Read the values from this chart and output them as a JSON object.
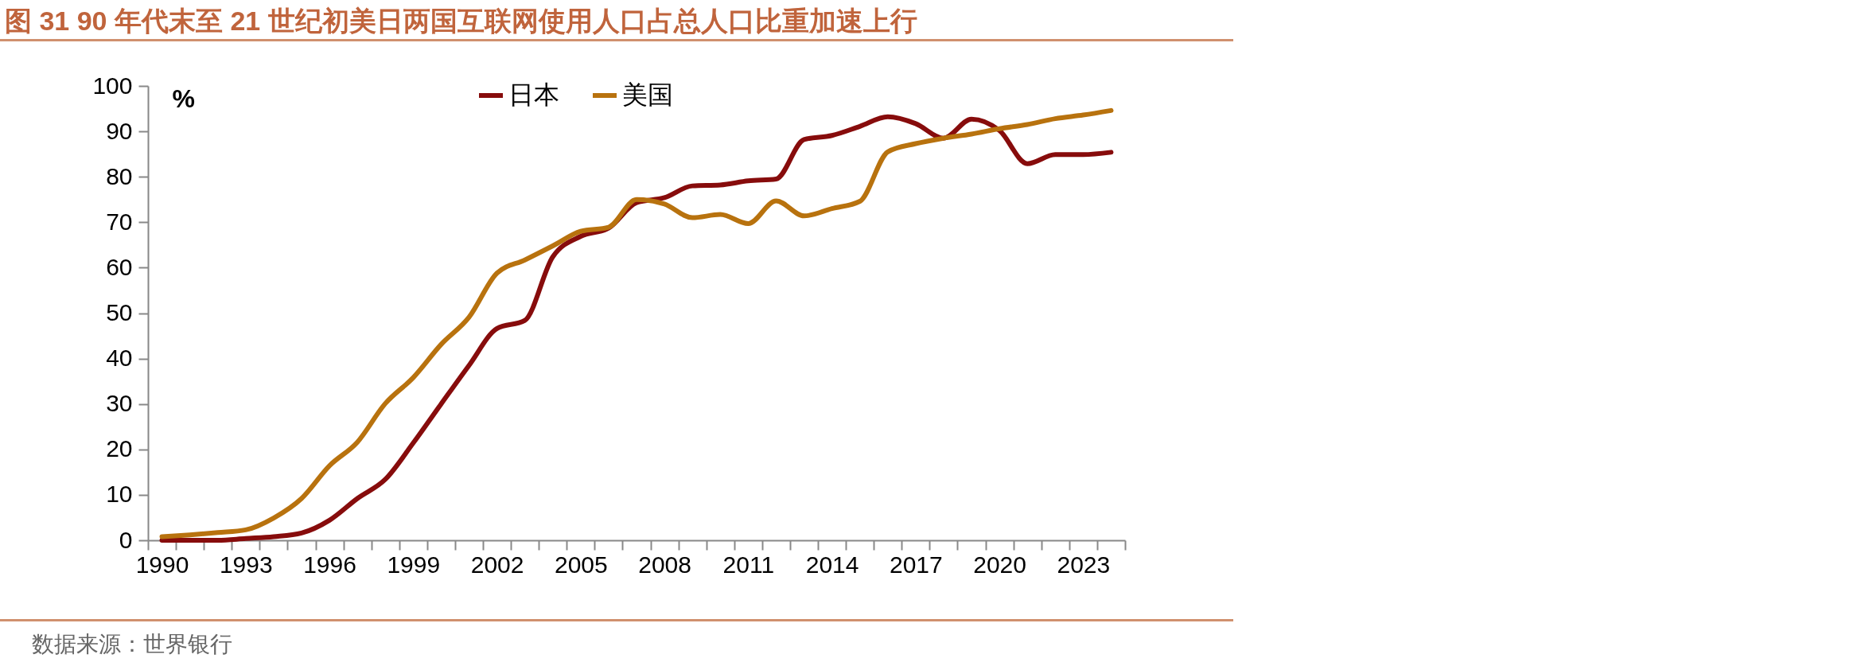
{
  "chart_data": {
    "type": "line",
    "title": "图 31 90 年代末至 21 世纪初美日两国互联网使用人口占总人口比重加速上行",
    "ylabel": "%",
    "categories": [
      "1990",
      null,
      null,
      "1993",
      null,
      null,
      "1996",
      null,
      null,
      "1999",
      null,
      null,
      "2002",
      null,
      null,
      "2005",
      null,
      null,
      "2008",
      null,
      null,
      "2011",
      null,
      null,
      "2014",
      null,
      null,
      "2017",
      null,
      null,
      "2020",
      null,
      null,
      "2023",
      null
    ],
    "series": [
      {
        "name": "日本",
        "color": "#870c0c",
        "values": [
          0,
          0,
          0,
          0.4,
          0.8,
          1.6,
          4.4,
          9.2,
          13.4,
          21.4,
          30,
          38.5,
          46.6,
          48.4,
          62.4,
          66.9,
          68.7,
          74.3,
          75.4,
          78,
          78.2,
          79.1,
          79.5,
          88.2,
          89.1,
          91.1,
          93.2,
          91.7,
          88.5,
          92.7,
          90.2,
          82.9,
          84.9,
          84.9,
          85.4
        ]
      },
      {
        "name": "美国",
        "color": "#b8720e",
        "values": [
          0.8,
          1.2,
          1.7,
          2.3,
          4.9,
          9.2,
          16.4,
          21.6,
          30.1,
          35.8,
          43.1,
          49.1,
          58.8,
          61.7,
          64.8,
          68,
          68.9,
          75,
          74,
          71,
          71.7,
          69.7,
          74.7,
          71.4,
          73,
          74.6,
          85.5,
          87.3,
          88.5,
          89.4,
          90.6,
          91.5,
          92.8,
          93.6,
          94.6
        ]
      }
    ],
    "ylim": [
      0,
      100
    ],
    "yticks": [
      0,
      10,
      20,
      30,
      40,
      50,
      60,
      70,
      80,
      90,
      100
    ],
    "legend": "top",
    "line_style": "solid",
    "marker": "none",
    "annotations": [
      "数据来源：世界银行"
    ]
  }
}
